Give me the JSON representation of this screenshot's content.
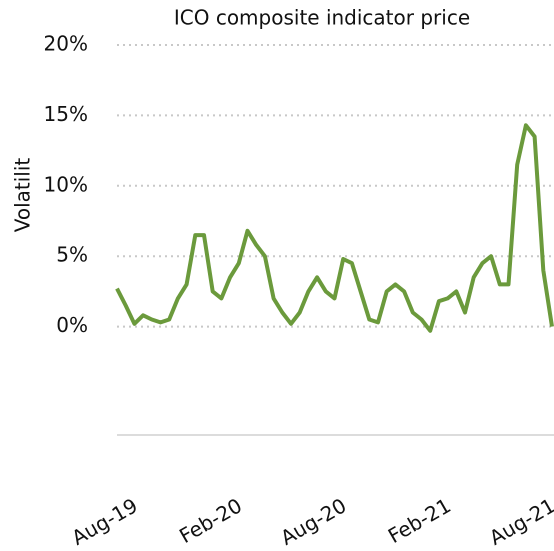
{
  "chart_data": {
    "type": "line",
    "title": "ICO  composite indicator price",
    "y_label": "Volatilit",
    "categories": [
      null,
      null,
      "Aug-19",
      null,
      null,
      null,
      null,
      null,
      null,
      null,
      null,
      null,
      null,
      null,
      "Feb-20",
      null,
      null,
      null,
      null,
      null,
      null,
      null,
      null,
      null,
      null,
      null,
      "Aug-20",
      null,
      null,
      null,
      null,
      null,
      null,
      null,
      null,
      null,
      null,
      null,
      "Feb-21",
      null,
      null,
      null,
      null,
      null,
      null,
      null,
      null,
      null,
      null,
      null,
      "Aug-21"
    ],
    "values": [
      2.7,
      1.5,
      0.2,
      0.8,
      0.5,
      0.3,
      0.5,
      2.0,
      3.0,
      6.5,
      6.5,
      2.5,
      2.0,
      3.5,
      4.5,
      6.8,
      5.8,
      5.0,
      2.0,
      1.0,
      0.2,
      1.0,
      2.5,
      3.5,
      2.5,
      2.0,
      4.8,
      4.5,
      2.5,
      0.5,
      0.3,
      2.5,
      3.0,
      2.5,
      1.0,
      0.5,
      -0.3,
      1.8,
      2.0,
      2.5,
      1.0,
      3.5,
      4.5,
      5.0,
      3.0,
      3.0,
      11.5,
      14.3,
      13.5,
      4.0,
      0.0
    ],
    "color": "#6b9a3c",
    "ylim": [
      -7.7,
      20
    ],
    "yticks": [
      {
        "value": 20,
        "label": "20%"
      },
      {
        "value": 15,
        "label": "15%"
      },
      {
        "value": 10,
        "label": "10%"
      },
      {
        "value": 5,
        "label": "5%"
      },
      {
        "value": 0,
        "label": "0%"
      }
    ],
    "grid": true
  }
}
